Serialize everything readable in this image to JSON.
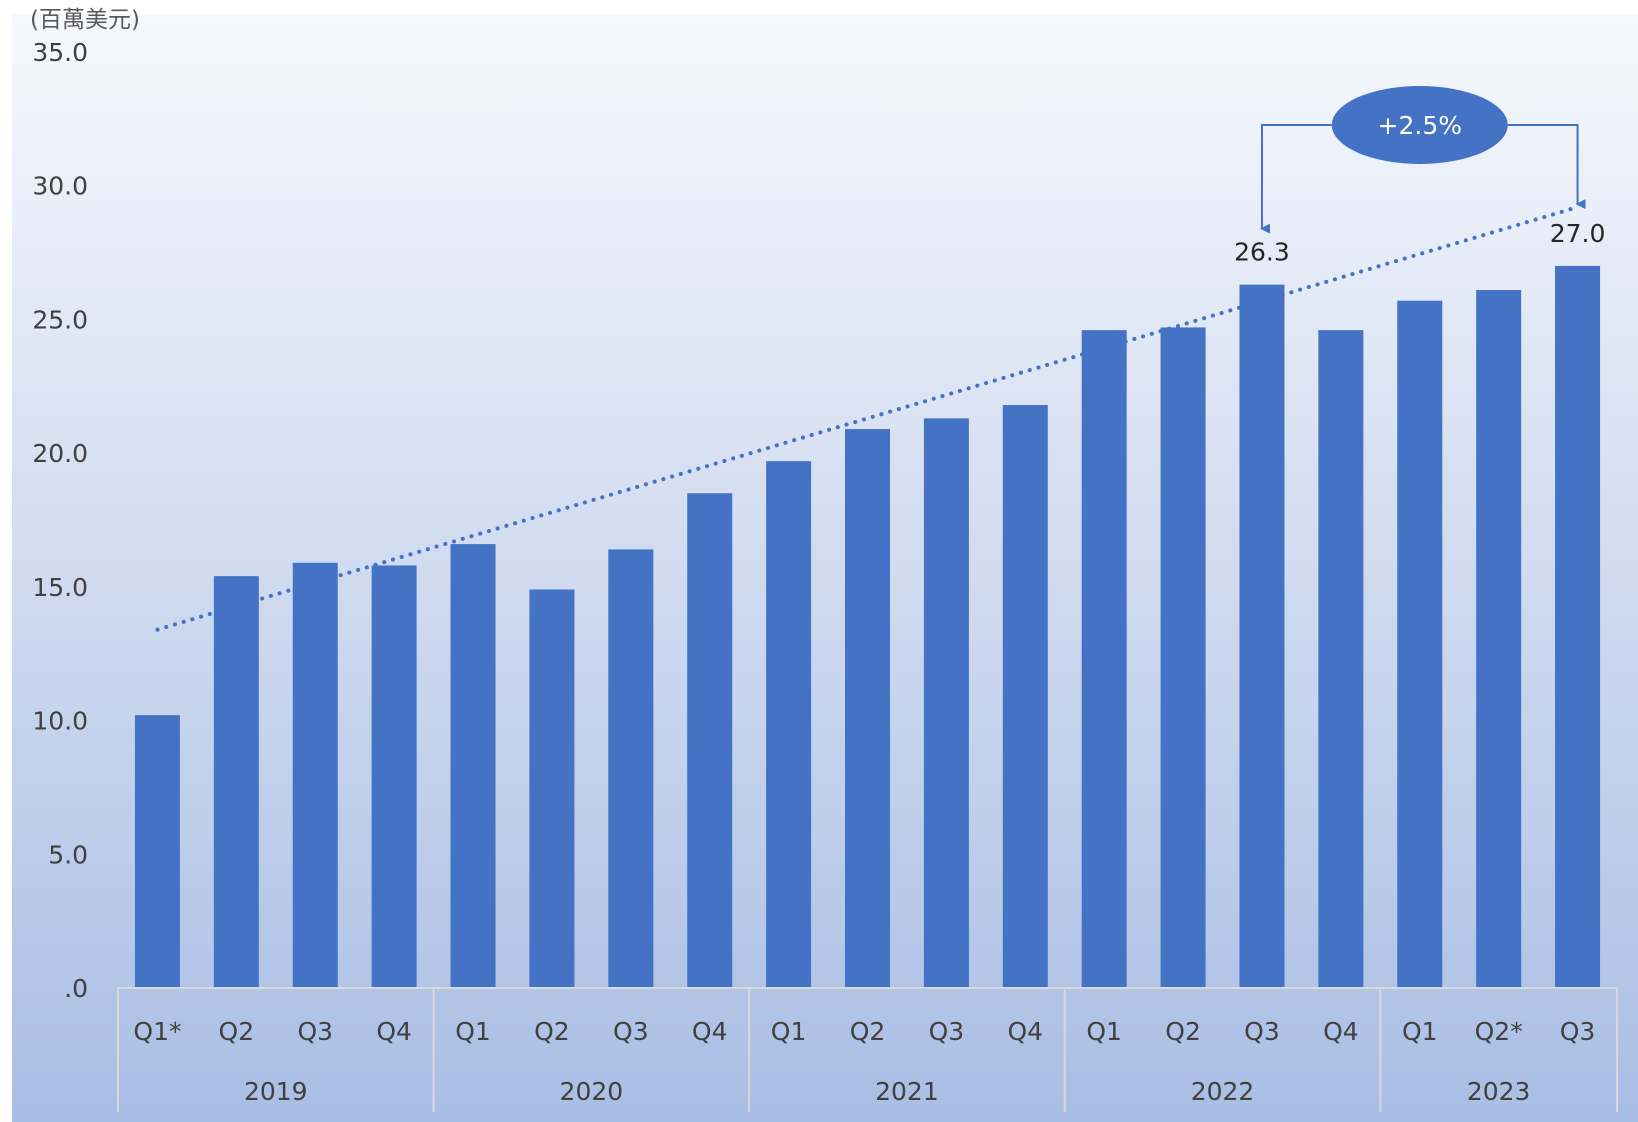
{
  "chart_data": {
    "type": "bar",
    "unit_label": "(百萬美元)",
    "y_tick_labels": [
      ".0",
      "5.0",
      "10.0",
      "15.0",
      "20.0",
      "25.0",
      "30.0",
      "35.0"
    ],
    "ylim": [
      0,
      35
    ],
    "categories": [
      "Q1*",
      "Q2",
      "Q3",
      "Q4",
      "Q1",
      "Q2",
      "Q3",
      "Q4",
      "Q1",
      "Q2",
      "Q3",
      "Q4",
      "Q1",
      "Q2",
      "Q3",
      "Q4",
      "Q1",
      "Q2*",
      "Q3"
    ],
    "years": [
      {
        "label": "2019",
        "count": 4
      },
      {
        "label": "2020",
        "count": 4
      },
      {
        "label": "2021",
        "count": 4
      },
      {
        "label": "2022",
        "count": 4
      },
      {
        "label": "2023",
        "count": 3
      }
    ],
    "values": [
      10.2,
      15.4,
      15.9,
      15.8,
      16.6,
      14.9,
      16.4,
      18.5,
      19.7,
      20.9,
      21.3,
      21.8,
      24.6,
      24.7,
      26.3,
      24.6,
      25.7,
      26.1,
      27.0
    ],
    "data_labels": [
      {
        "index": 14,
        "text": "26.3"
      },
      {
        "index": 18,
        "text": "27.0"
      }
    ],
    "trendline": {
      "style": "dotted",
      "start": 13.4,
      "end": 29.2
    },
    "annotation": {
      "text": "+2.5%",
      "from_index": 14,
      "to_index": 18
    },
    "grid": false,
    "legend": "none",
    "colors": {
      "bar": "#4472C4",
      "trend": "#4472C4",
      "badge": "#4472C4",
      "axis": "#D9D9D9"
    }
  }
}
